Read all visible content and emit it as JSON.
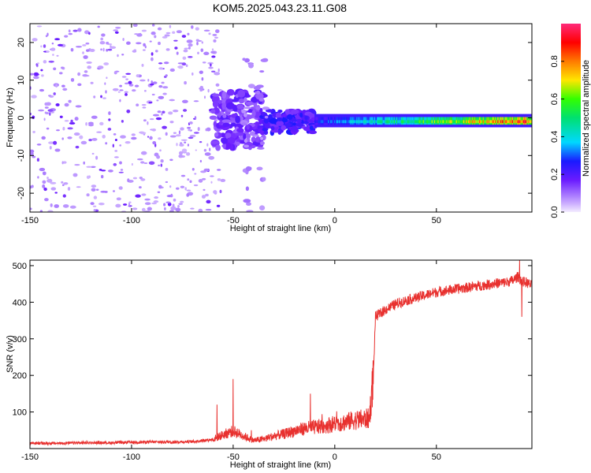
{
  "title": "KOM5.2025.043.23.11.G08",
  "chart_data": [
    {
      "type": "heatmap",
      "xlabel": "Height of straight line (km)",
      "ylabel": "Frequency (Hz)",
      "xlim": [
        -150,
        97
      ],
      "ylim": [
        -25,
        25
      ],
      "xticks": [
        -150,
        -100,
        -50,
        0,
        50
      ],
      "yticks": [
        -20,
        -10,
        0,
        10,
        20
      ],
      "colorbar": {
        "label": "Normalized spectral amplitude",
        "range": [
          0,
          1
        ],
        "ticks": [
          "0.0",
          "0.2",
          "0.4",
          "0.6",
          "0.8"
        ],
        "colormap": "purple-blue-cyan-green-yellow-red-pink"
      },
      "features": [
        {
          "description_x_range": [
            -150,
            -60
          ],
          "frequency_range": [
            -25,
            25
          ],
          "amplitude": "low (0.0-0.1), scattered noise"
        },
        {
          "description_x_range": [
            -60,
            -35
          ],
          "frequency_range": [
            -8,
            7
          ],
          "amplitude": "0.1-0.2"
        },
        {
          "description_x_range": [
            -35,
            -10
          ],
          "frequency_range": [
            -3,
            2
          ],
          "amplitude": "0.2-0.3"
        },
        {
          "description_x_range": [
            -10,
            97
          ],
          "frequency_center": -1,
          "frequency_halfwidth": 1.5,
          "amplitude": "0.3-1.0, increasing with height"
        }
      ]
    },
    {
      "type": "line",
      "xlabel": "Height of straight line (km)",
      "ylabel": "SNR (v/v)",
      "xlim": [
        -150,
        97
      ],
      "ylim": [
        0,
        515
      ],
      "xticks": [
        -150,
        -100,
        -50,
        0,
        50
      ],
      "yticks": [
        100,
        200,
        300,
        400,
        500
      ],
      "line_color": "#e8312f",
      "series": [
        {
          "x": [
            -150,
            -140,
            -130,
            -120,
            -110,
            -100,
            -90,
            -80,
            -70,
            -60,
            -55,
            -50,
            -45,
            -40,
            -35,
            -30,
            -25,
            -20,
            -15,
            -10,
            -5,
            0,
            5,
            10,
            17,
            19,
            20,
            25,
            30,
            35,
            40,
            45,
            50,
            55,
            60,
            65,
            70,
            75,
            80,
            85,
            88,
            90,
            92,
            95,
            97
          ],
          "y": [
            15,
            14,
            15,
            16,
            16,
            17,
            18,
            18,
            19,
            25,
            38,
            48,
            35,
            22,
            26,
            34,
            40,
            48,
            55,
            58,
            62,
            68,
            72,
            78,
            82,
            200,
            360,
            380,
            395,
            405,
            412,
            420,
            428,
            432,
            436,
            440,
            444,
            448,
            452,
            455,
            460,
            470,
            458,
            452,
            445
          ]
        }
      ],
      "annotations_peaks": [
        {
          "x": -50,
          "y": 190
        },
        {
          "x": -58,
          "y": 120
        },
        {
          "x": -12,
          "y": 150
        },
        {
          "x": 91,
          "y": 515
        },
        {
          "x": 92,
          "y": 360
        }
      ]
    }
  ]
}
